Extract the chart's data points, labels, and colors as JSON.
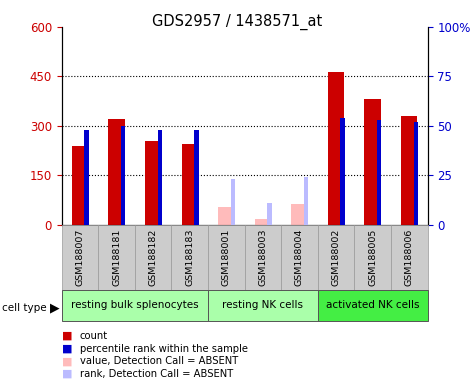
{
  "title": "GDS2957 / 1438571_at",
  "samples": [
    "GSM188007",
    "GSM188181",
    "GSM188182",
    "GSM188183",
    "GSM188001",
    "GSM188003",
    "GSM188004",
    "GSM188002",
    "GSM188005",
    "GSM188006"
  ],
  "count_values": [
    240,
    322,
    255,
    245,
    null,
    null,
    null,
    462,
    382,
    330
  ],
  "percentile_values": [
    48,
    50,
    48,
    48,
    null,
    null,
    null,
    54,
    53,
    52
  ],
  "absent_value": [
    null,
    null,
    null,
    null,
    55,
    18,
    62,
    null,
    null,
    null
  ],
  "absent_rank_pct": [
    null,
    null,
    null,
    null,
    23,
    11,
    24,
    null,
    null,
    null
  ],
  "cell_types": [
    {
      "label": "resting bulk splenocytes",
      "start": 0,
      "end": 4,
      "color": "#aaffaa"
    },
    {
      "label": "resting NK cells",
      "start": 4,
      "end": 7,
      "color": "#aaffaa"
    },
    {
      "label": "activated NK cells",
      "start": 7,
      "end": 10,
      "color": "#44ee44"
    }
  ],
  "ylim_left": [
    0,
    600
  ],
  "ylim_right": [
    0,
    100
  ],
  "yticks_left": [
    0,
    150,
    300,
    450,
    600
  ],
  "yticks_right": [
    0,
    25,
    50,
    75,
    100
  ],
  "yticklabels_left": [
    "0",
    "150",
    "300",
    "450",
    "600"
  ],
  "yticklabels_right": [
    "0",
    "25",
    "50",
    "75",
    "100%"
  ],
  "color_count": "#cc0000",
  "color_percentile": "#0000cc",
  "color_absent_value": "#ffbbbb",
  "color_absent_rank": "#bbbbff",
  "color_sample_bg": "#cccccc",
  "legend": [
    {
      "label": "count",
      "color": "#cc0000"
    },
    {
      "label": "percentile rank within the sample",
      "color": "#0000cc"
    },
    {
      "label": "value, Detection Call = ABSENT",
      "color": "#ffbbbb"
    },
    {
      "label": "rank, Detection Call = ABSENT",
      "color": "#bbbbff"
    }
  ]
}
